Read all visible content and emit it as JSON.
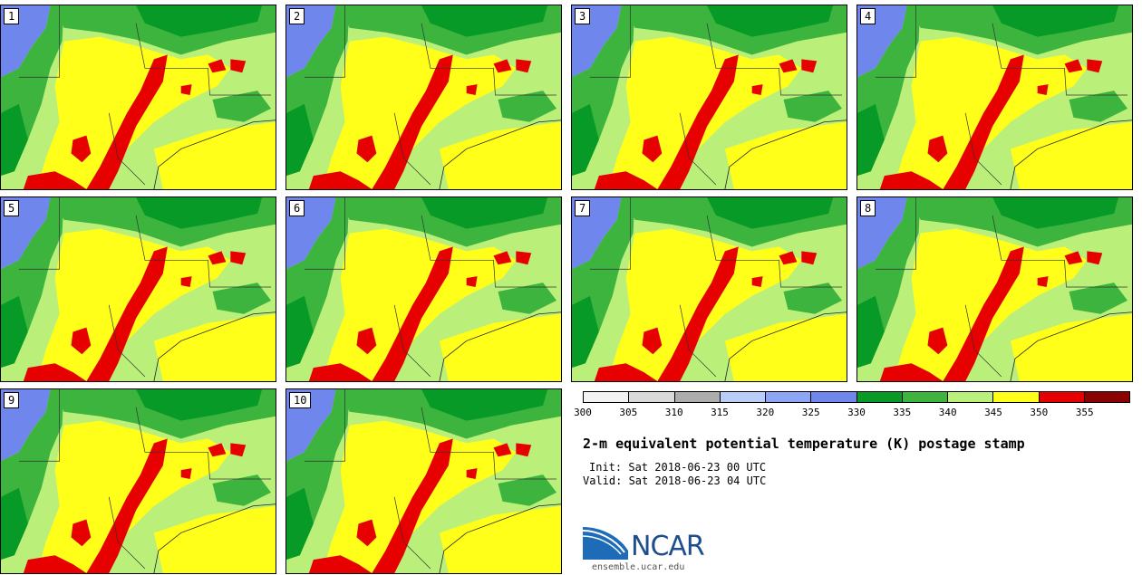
{
  "stamps": [
    {
      "label": "1"
    },
    {
      "label": "2"
    },
    {
      "label": "3"
    },
    {
      "label": "4"
    },
    {
      "label": "5"
    },
    {
      "label": "6"
    },
    {
      "label": "7"
    },
    {
      "label": "8"
    },
    {
      "label": "9"
    },
    {
      "label": "10"
    }
  ],
  "colorbar": {
    "colors": [
      "#f2f2f2",
      "#d9d9d9",
      "#adadad",
      "#b9cdf8",
      "#8ca6f5",
      "#6f87ec",
      "#079a26",
      "#3db43d",
      "#baf07a",
      "#ffff1a",
      "#e60000",
      "#8b0000"
    ],
    "ticks": [
      "300",
      "305",
      "310",
      "315",
      "320",
      "325",
      "330",
      "335",
      "340",
      "345",
      "350",
      "355"
    ]
  },
  "title": "2-m equivalent potential temperature (K) postage stamp",
  "init": "Init: Sat 2018-06-23 00 UTC",
  "valid": "Valid: Sat 2018-06-23 04 UTC",
  "logo": {
    "wordmark": "NCAR",
    "url": "ensemble.ucar.edu"
  }
}
